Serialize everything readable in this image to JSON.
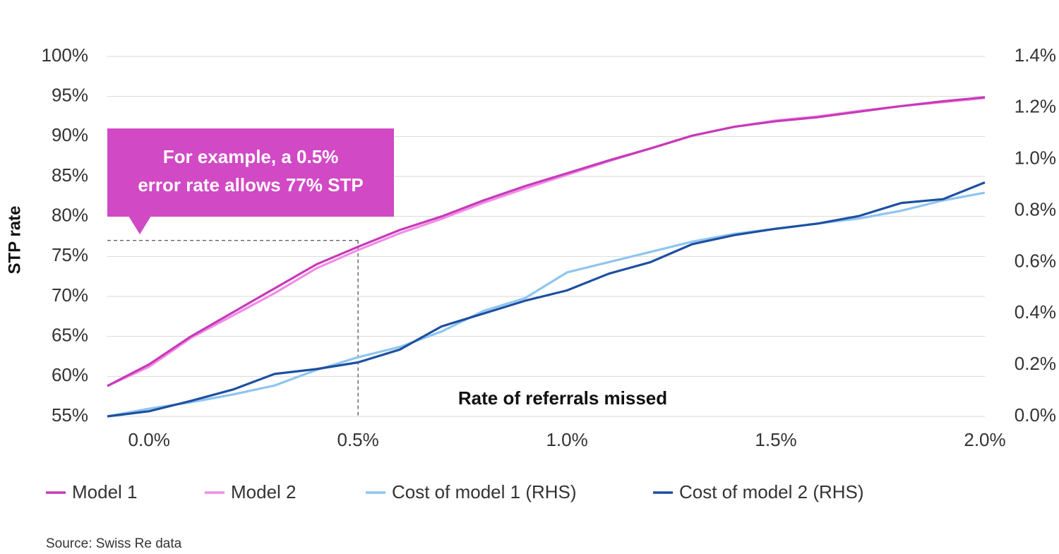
{
  "chart_data": {
    "type": "line",
    "y_axis_label": "STP rate",
    "x_axis_label": "Rate of referrals missed",
    "source": "Source: Swiss Re data",
    "annotation": {
      "lines": [
        "For example, a 0.5%",
        "error rate allows 77% STP"
      ],
      "x": 0.5,
      "y": 77,
      "color": "#d149c4"
    },
    "x": [
      -0.1,
      0.0,
      0.1,
      0.2,
      0.3,
      0.4,
      0.5,
      0.6,
      0.7,
      0.8,
      0.9,
      1.0,
      1.1,
      1.2,
      1.3,
      1.4,
      1.5,
      1.6,
      1.7,
      1.8,
      1.9,
      2.0
    ],
    "xlim": [
      -0.1,
      2.0
    ],
    "xticks": [
      {
        "value": 0.0,
        "label": "0.0%"
      },
      {
        "value": 0.5,
        "label": "0.5%"
      },
      {
        "value": 1.0,
        "label": "1.0%"
      },
      {
        "value": 1.5,
        "label": "1.5%"
      },
      {
        "value": 2.0,
        "label": "2.0%"
      }
    ],
    "ylim": [
      55,
      100
    ],
    "yticks": [
      {
        "value": 55,
        "label": "55%"
      },
      {
        "value": 60,
        "label": "60%"
      },
      {
        "value": 65,
        "label": "65%"
      },
      {
        "value": 70,
        "label": "70%"
      },
      {
        "value": 75,
        "label": "75%"
      },
      {
        "value": 80,
        "label": "80%"
      },
      {
        "value": 85,
        "label": "85%"
      },
      {
        "value": 90,
        "label": "90%"
      },
      {
        "value": 95,
        "label": "95%"
      },
      {
        "value": 100,
        "label": "100%"
      }
    ],
    "y2lim": [
      0,
      1.4
    ],
    "y2ticks": [
      {
        "value": 0.0,
        "label": "0.0%"
      },
      {
        "value": 0.2,
        "label": "0.2%"
      },
      {
        "value": 0.4,
        "label": "0.4%"
      },
      {
        "value": 0.6,
        "label": "0.6%"
      },
      {
        "value": 0.8,
        "label": "0.8%"
      },
      {
        "value": 1.0,
        "label": "1.0%"
      },
      {
        "value": 1.2,
        "label": "1.2%"
      },
      {
        "value": 1.4,
        "label": "1.4%"
      }
    ],
    "grid": true,
    "legend": "bottom",
    "series": [
      {
        "name": "Model 1",
        "color": "#c63ab8",
        "values": [
          58.8,
          61.5,
          65,
          68,
          71,
          74,
          76.2,
          78.3,
          80,
          82,
          83.8,
          85.4,
          87,
          88.5,
          90.1,
          91.2,
          91.9,
          92.4,
          93.1,
          93.8,
          94.4,
          94.9
        ]
      },
      {
        "name": "Model 2",
        "color": "#f28ce6",
        "values": [
          58.8,
          61.2,
          64.8,
          67.6,
          70.4,
          73.5,
          75.8,
          77.9,
          79.7,
          81.7,
          83.5,
          85.2,
          86.9,
          88.5,
          90.1,
          91.2,
          92,
          92.5,
          93.2,
          93.8,
          94.3,
          94.8
        ]
      },
      {
        "name": "Cost of model 1 (RHS)",
        "color": "#8ec5f0",
        "axis": "y2",
        "values": [
          0.0,
          0.03,
          0.055,
          0.085,
          0.12,
          0.18,
          0.23,
          0.27,
          0.33,
          0.41,
          0.46,
          0.56,
          0.6,
          0.64,
          0.68,
          0.71,
          0.73,
          0.75,
          0.77,
          0.8,
          0.84,
          0.87
        ]
      },
      {
        "name": "Cost of model 2 (RHS)",
        "color": "#1d4fa0",
        "axis": "y2",
        "values": [
          0.0,
          0.02,
          0.06,
          0.104,
          0.165,
          0.184,
          0.21,
          0.26,
          0.35,
          0.4,
          0.45,
          0.49,
          0.555,
          0.6,
          0.67,
          0.705,
          0.73,
          0.75,
          0.78,
          0.83,
          0.845,
          0.91
        ]
      }
    ]
  }
}
